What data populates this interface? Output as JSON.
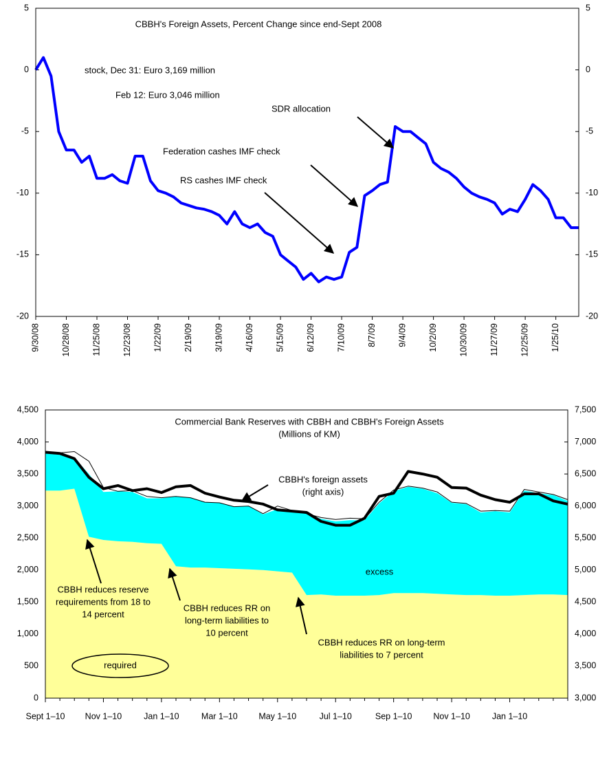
{
  "chart_data": [
    {
      "type": "line",
      "title": "CBBH's Foreign Assets, Percent Change since end-Sept 2008",
      "annotations": [
        "stock, Dec 31: Euro 3,169 million",
        "Feb 12: Euro 3,046 million",
        "SDR allocation",
        "Federation cashes IMF check",
        "RS cashes IMF check"
      ],
      "categories": [
        "9/30/08",
        null,
        null,
        null,
        "10/28/08",
        null,
        null,
        null,
        "11/25/08",
        null,
        null,
        null,
        "12/23/08",
        null,
        null,
        null,
        "1/22/09",
        null,
        null,
        null,
        "2/19/09",
        null,
        null,
        null,
        "3/19/09",
        null,
        null,
        null,
        "4/16/09",
        null,
        null,
        null,
        "5/15/09",
        null,
        null,
        null,
        "6/12/09",
        null,
        null,
        null,
        "7/10/09",
        null,
        null,
        null,
        "8/7/09",
        null,
        null,
        null,
        "9/4/09",
        null,
        null,
        null,
        "10/2/09",
        null,
        null,
        null,
        "10/30/09",
        null,
        null,
        null,
        "11/27/09",
        null,
        null,
        null,
        "12/25/09",
        null,
        null,
        null,
        "1/25/10",
        null,
        null,
        null
      ],
      "series": [
        {
          "color": "#0000ff",
          "values": [
            0,
            1.0,
            -0.5,
            -5,
            -6.5,
            -6.5,
            -7.5,
            -7,
            -8.8,
            -8.8,
            -8.5,
            -9,
            -9.2,
            -7,
            -7,
            -9,
            -9.8,
            -10,
            -10.3,
            -10.8,
            -11,
            -11.2,
            -11.3,
            -11.5,
            -11.8,
            -12.5,
            -11.5,
            -12.5,
            -12.8,
            -12.5,
            -13.2,
            -13.5,
            -15,
            -15.5,
            -16,
            -17,
            -16.5,
            -17.2,
            -16.8,
            -17,
            -16.8,
            -14.8,
            -14.4,
            -10.2,
            -9.8,
            -9.3,
            -9.1,
            -4.6,
            -5,
            -5,
            -5.5,
            -6,
            -7.5,
            -8,
            -8.3,
            -8.8,
            -9.5,
            -10,
            -10.3,
            -10.5,
            -10.8,
            -11.7,
            -11.3,
            -11.5,
            -10.5,
            -9.3,
            -9.8,
            -10.5,
            -12,
            -12,
            -12.8,
            -12.8
          ]
        }
      ],
      "ylim": [
        -20,
        5
      ],
      "yticks": [
        5,
        0,
        -5,
        -10,
        -15,
        -20
      ],
      "y2lim": [
        -20,
        5
      ],
      "y2ticks": [
        5,
        0,
        -5,
        -10,
        -15,
        -20
      ],
      "grid": false
    },
    {
      "type": "area",
      "title": "Commercial Bank Reserves with CBBH and CBBH's Foreign Assets",
      "subtitle": "(Millions of KM)",
      "annotations": [
        "(right axis)",
        [
          "CBBH reduces reserve",
          "requirements from 18 to",
          "14 percent"
        ],
        [
          "CBBH reduces RR on",
          "long-term liabilities to",
          "10 percent"
        ],
        [
          "CBBH reduces RR on long-term",
          "liabilities to 7 percent"
        ]
      ],
      "categories": [
        "Sept 1–10",
        null,
        null,
        null,
        "Nov 1–10",
        null,
        null,
        null,
        "Jan 1–10",
        null,
        null,
        null,
        "Mar 1–10",
        null,
        null,
        null,
        "May 1–10",
        null,
        null,
        null,
        "Jul 1–10",
        null,
        null,
        null,
        "Sep 1–10",
        null,
        null,
        null,
        "Nov 1–10",
        null,
        null,
        null,
        "Jan 1–10",
        null,
        null,
        null,
        null
      ],
      "series": [
        {
          "name": "required",
          "color": "#ffff99",
          "kind": "area",
          "values": [
            3240,
            3240,
            3270,
            2520,
            2470,
            2450,
            2440,
            2420,
            2410,
            2060,
            2040,
            2040,
            2030,
            2020,
            2010,
            2000,
            1980,
            1960,
            1610,
            1620,
            1600,
            1600,
            1600,
            1610,
            1640,
            1640,
            1640,
            1630,
            1620,
            1610,
            1610,
            1600,
            1600,
            1610,
            1620,
            1620,
            1610
          ]
        },
        {
          "name": "excess",
          "color": "#00ffff",
          "kind": "area",
          "values": [
            580,
            560,
            490,
            980,
            750,
            780,
            780,
            700,
            710,
            1090,
            1090,
            1020,
            1020,
            970,
            990,
            870,
            970,
            970,
            1270,
            1180,
            1160,
            1180,
            1180,
            1430,
            1590,
            1660,
            1630,
            1570,
            1430,
            1420,
            1290,
            1320,
            1300,
            1630,
            1580,
            1550,
            1470
          ]
        },
        {
          "color": "#000000",
          "kind": "line",
          "values": [
            3840,
            3830,
            3850,
            3700,
            3290,
            3230,
            3240,
            3150,
            3130,
            3150,
            3130,
            3060,
            3050,
            2990,
            3000,
            2880,
            3000,
            2930,
            2880,
            2820,
            2790,
            2810,
            2800,
            3060,
            3250,
            3310,
            3280,
            3220,
            3060,
            3040,
            2920,
            2930,
            2920,
            3260,
            3220,
            3180,
            3100
          ]
        },
        {
          "name": "CBBH's foreign assets",
          "color": "#000000",
          "kind": "line",
          "axis": "y2",
          "values": [
            6840,
            6820,
            6740,
            6450,
            6270,
            6320,
            6240,
            6270,
            6210,
            6300,
            6320,
            6200,
            6140,
            6090,
            6070,
            6030,
            5940,
            5920,
            5900,
            5760,
            5700,
            5700,
            5810,
            6150,
            6200,
            6540,
            6500,
            6450,
            6290,
            6280,
            6170,
            6100,
            6060,
            6190,
            6190,
            6080,
            6030
          ]
        }
      ],
      "ylim": [
        0,
        4500
      ],
      "yticks": [
        0,
        500,
        {
          "value": 1000,
          "label": "1,000"
        },
        {
          "value": 1500,
          "label": "1,500"
        },
        {
          "value": 2000,
          "label": "2,000"
        },
        {
          "value": 2500,
          "label": "2,500"
        },
        {
          "value": 3000,
          "label": "3,000"
        },
        {
          "value": 3500,
          "label": "3,500"
        },
        {
          "value": 4000,
          "label": "4,000"
        },
        {
          "value": 4500,
          "label": "4,500"
        }
      ],
      "y2lim": [
        3000,
        7500
      ],
      "y2ticks": [
        {
          "value": 3000,
          "label": "3,000"
        },
        {
          "value": 3500,
          "label": "3,500"
        },
        {
          "value": 4000,
          "label": "4,000"
        },
        {
          "value": 4500,
          "label": "4,500"
        },
        {
          "value": 5000,
          "label": "5,000"
        },
        {
          "value": 5500,
          "label": "5,500"
        },
        {
          "value": 6000,
          "label": "6,000"
        },
        {
          "value": 6500,
          "label": "6,500"
        },
        {
          "value": 7000,
          "label": "7,000"
        },
        {
          "value": 7500,
          "label": "7,500"
        }
      ],
      "grid": false
    }
  ]
}
